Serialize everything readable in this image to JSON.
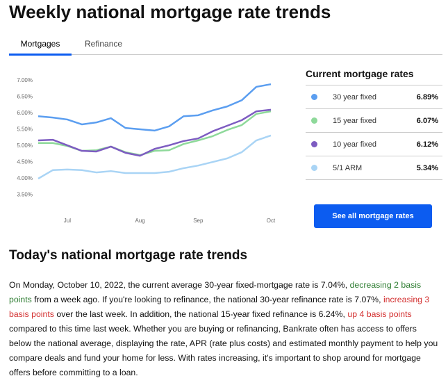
{
  "header": {
    "title": "Weekly national mortgage rate trends"
  },
  "tabs": [
    "Mortgages",
    "Refinance"
  ],
  "chart_data": {
    "type": "line",
    "categories": [
      null,
      null,
      "Jul",
      null,
      null,
      null,
      null,
      "Aug",
      null,
      null,
      null,
      "Sep",
      null,
      null,
      null,
      null,
      "Oct"
    ],
    "series": [
      {
        "name": "30 year fixed",
        "color": "#5b9ef0",
        "values": [
          5.91,
          5.87,
          5.81,
          5.66,
          5.72,
          5.85,
          5.55,
          5.51,
          5.47,
          5.6,
          5.91,
          5.94,
          6.09,
          6.21,
          6.4,
          6.81,
          6.89
        ]
      },
      {
        "name": "15 year fixed",
        "color": "#8ed99a",
        "values": [
          5.09,
          5.09,
          5.0,
          4.85,
          4.87,
          4.98,
          4.81,
          4.72,
          4.85,
          4.87,
          5.06,
          5.17,
          5.3,
          5.49,
          5.64,
          5.98,
          6.06
        ]
      },
      {
        "name": "10 year fixed",
        "color": "#7d5cc1",
        "values": [
          5.17,
          5.19,
          5.02,
          4.85,
          4.83,
          4.98,
          4.79,
          4.7,
          4.91,
          5.02,
          5.15,
          5.23,
          5.45,
          5.62,
          5.79,
          6.06,
          6.11
        ]
      },
      {
        "name": "5/1 ARM",
        "color": "#a9d4f5",
        "values": [
          4.0,
          4.26,
          4.28,
          4.26,
          4.19,
          4.23,
          4.17,
          4.17,
          4.17,
          4.21,
          4.32,
          4.4,
          4.51,
          4.62,
          4.81,
          5.17,
          5.32
        ]
      }
    ],
    "ylim": [
      3.0,
      7.5
    ],
    "yticks": [
      {
        "value": 7,
        "label": "7.00%"
      },
      {
        "value": 6.5,
        "label": "6.50%"
      },
      {
        "value": 6,
        "label": "6.00%"
      },
      {
        "value": 5.5,
        "label": "5.50%"
      },
      {
        "value": 5,
        "label": "5.00%"
      },
      {
        "value": 4.5,
        "label": "4.50%"
      },
      {
        "value": 4,
        "label": "4.00%"
      },
      {
        "value": 3.5,
        "label": "3.50%"
      }
    ],
    "grid": false
  },
  "rates": {
    "title": "Current mortgage rates",
    "values": [
      "6.89%",
      "6.07%",
      "6.12%",
      "5.34%"
    ],
    "button": "See all mortgage rates"
  },
  "article": {
    "title": "Today's national mortgage rate trends",
    "segments": [
      {
        "text": "On Monday, October 10, 2022, the current average 30-year fixed-mortgage rate is 7.04%, "
      },
      {
        "text": "decreasing 2 basis points",
        "color": "#2e7d32"
      },
      {
        "text": " from a week ago. If you're looking to refinance, the national 30-year refinance rate is 7.07%, "
      },
      {
        "text": "increasing 3 basis points",
        "color": "#d32f2f"
      },
      {
        "text": " over the last week. In addition, the national 15-year fixed refinance is 6.24%, "
      },
      {
        "text": "up 4 basis points",
        "color": "#d32f2f"
      },
      {
        "text": " compared to this time last week. Whether you are buying or refinancing, Bankrate often has access to offers below the national average, displaying the rate, APR (rate plus costs) and estimated monthly payment to help you compare deals and fund your home for less. With rates increasing, it's important to shop around for mortgage offers before committing to a loan."
      }
    ]
  }
}
